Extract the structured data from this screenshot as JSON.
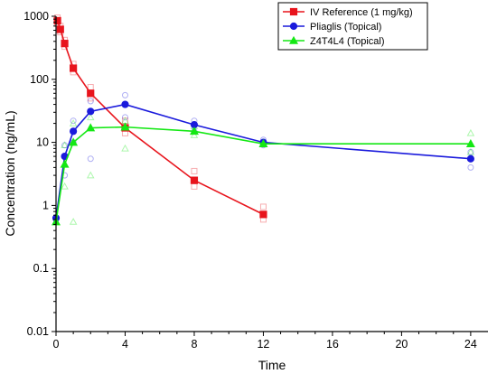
{
  "chart_data": {
    "type": "line",
    "xlabel": "Time",
    "ylabel": "Concentration (ng/mL)",
    "xlim": [
      0,
      25
    ],
    "ylim": [
      0.01,
      1000
    ],
    "yscale": "log",
    "grid": false,
    "legend_position": "top-right",
    "x_ticks": [
      0,
      4,
      8,
      12,
      16,
      20,
      24
    ],
    "x_tick_labels": [
      "0",
      "4",
      "8",
      "12",
      "16",
      "20",
      "24"
    ],
    "y_ticks": [
      0.01,
      0.1,
      1,
      10,
      100,
      1000
    ],
    "y_tick_labels": [
      "0.01",
      "0.1",
      "1",
      "10",
      "100",
      "1000"
    ],
    "series": [
      {
        "name": "IV Reference (1 mg/kg)",
        "color": "#e8141c",
        "marker": "square",
        "x": [
          0.083,
          0.25,
          0.5,
          1,
          2,
          4,
          8,
          12
        ],
        "y": [
          850,
          620,
          370,
          150,
          60,
          17,
          2.5,
          0.72
        ],
        "individual": {
          "x": [
            0.083,
            0.083,
            0.25,
            0.25,
            0.5,
            0.5,
            1,
            1,
            2,
            2,
            4,
            4,
            8,
            8,
            12,
            12
          ],
          "y": [
            950,
            760,
            700,
            560,
            420,
            330,
            175,
            130,
            75,
            50,
            22,
            14,
            3.5,
            2.0,
            0.95,
            0.6
          ]
        }
      },
      {
        "name": "Pliaglis (Topical)",
        "color": "#1a1adc",
        "marker": "circle",
        "x": [
          0,
          0.5,
          1,
          2,
          4,
          8,
          12,
          24
        ],
        "y": [
          0.63,
          6,
          15,
          31,
          40,
          19,
          10,
          5.5
        ],
        "individual": {
          "x": [
            0,
            0.5,
            0.5,
            1,
            1,
            2,
            2,
            4,
            4,
            8,
            8,
            12,
            12,
            24,
            24
          ],
          "y": [
            0.6,
            9,
            3,
            22,
            10,
            45,
            5.5,
            56,
            25,
            22,
            15,
            11,
            9,
            7,
            4
          ]
        }
      },
      {
        "name": "Z4T4L4 (Topical)",
        "color": "#14e814",
        "marker": "triangle",
        "x": [
          0,
          0.5,
          1,
          2,
          4,
          8,
          12,
          24
        ],
        "y": [
          0.55,
          4.5,
          10,
          17,
          17.5,
          15,
          9.5,
          9.5
        ],
        "individual": {
          "x": [
            0,
            0.5,
            0.5,
            1,
            1,
            2,
            2,
            4,
            4,
            8,
            8,
            12,
            24,
            24
          ],
          "y": [
            0.55,
            9,
            2,
            20,
            0.55,
            25,
            3,
            22,
            8,
            18,
            13,
            10,
            14,
            7
          ]
        }
      }
    ]
  }
}
